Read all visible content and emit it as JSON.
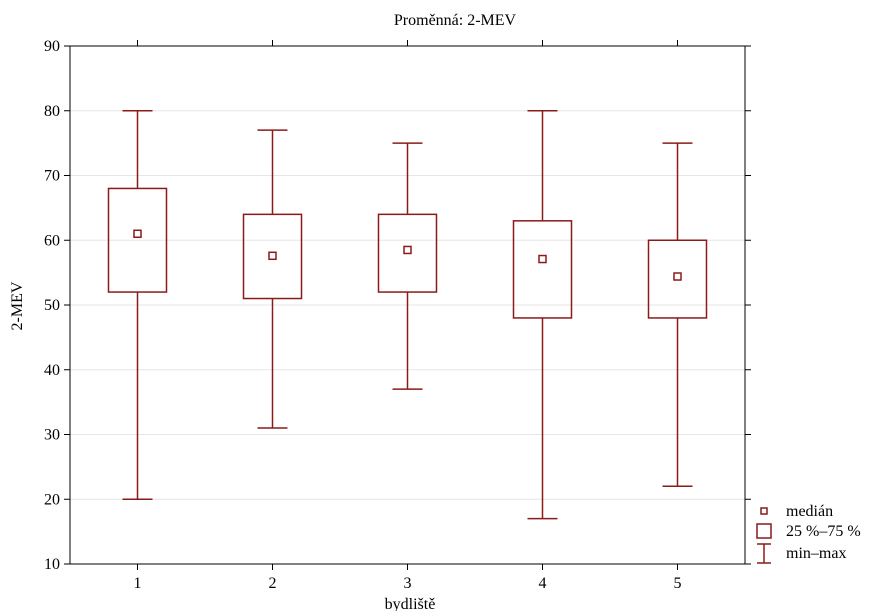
{
  "chart_data": {
    "type": "box",
    "title": "Proměnná: 2-MEV",
    "xlabel": "bydliště",
    "ylabel": "2-MEV",
    "ylim": [
      10,
      90
    ],
    "yticks": [
      10,
      20,
      30,
      40,
      50,
      60,
      70,
      80,
      90
    ],
    "categories": [
      "1",
      "2",
      "3",
      "4",
      "5"
    ],
    "boxes": [
      {
        "category": "1",
        "min": 20,
        "q1": 52,
        "median": 61,
        "q3": 68,
        "max": 80
      },
      {
        "category": "2",
        "min": 31,
        "q1": 51,
        "median": 57.6,
        "q3": 64,
        "max": 77
      },
      {
        "category": "3",
        "min": 37,
        "q1": 52,
        "median": 58.5,
        "q3": 64,
        "max": 75
      },
      {
        "category": "4",
        "min": 17,
        "q1": 48,
        "median": 57.1,
        "q3": 63,
        "max": 80
      },
      {
        "category": "5",
        "min": 22,
        "q1": 48,
        "median": 54.4,
        "q3": 60,
        "max": 75
      }
    ],
    "grid": true,
    "legend": {
      "placement": "bottom-right",
      "entries": [
        "medián",
        "25 %–75 %",
        "min–max"
      ]
    },
    "colors": {
      "series": "#8b1a1a",
      "grid": "#e6e6e6",
      "axis": "#000000"
    }
  }
}
